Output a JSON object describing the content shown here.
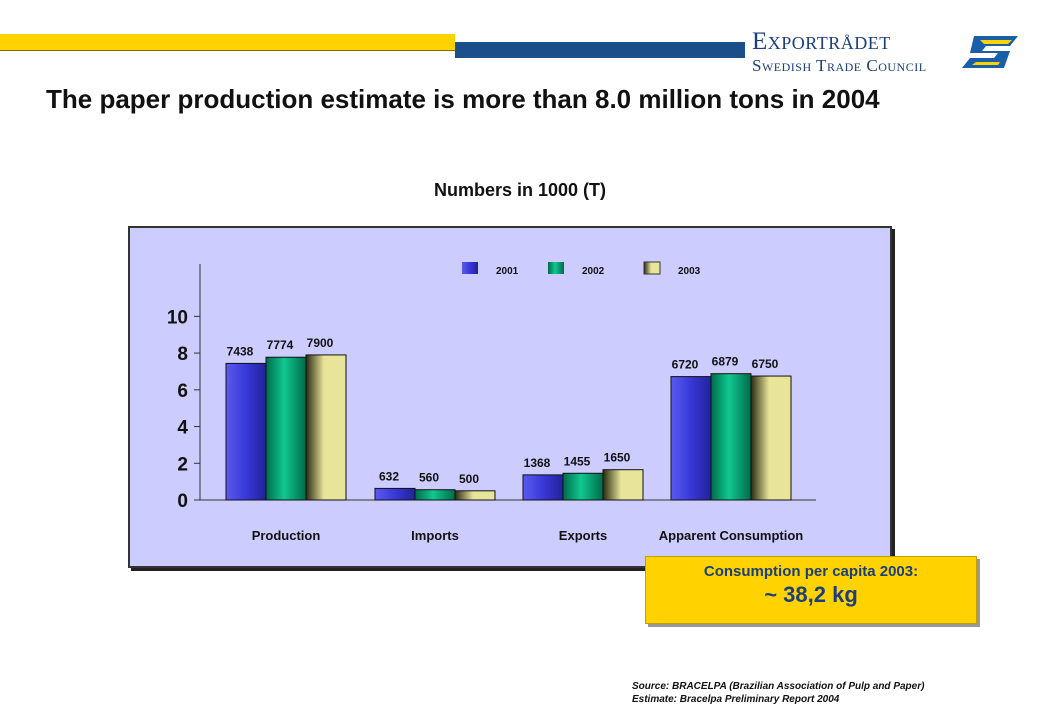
{
  "header": {
    "logo_line1": "Exportrådet",
    "logo_line2": "Swedish Trade Council",
    "logo_icon": "swedish-trade-council-logo-icon"
  },
  "title": "The paper production estimate  is more than 8.0 million tons in 2004",
  "subtitle": "Numbers in 1000 (T)",
  "chart_data": {
    "type": "bar",
    "categories": [
      "Production",
      "Imports",
      "Exports",
      "Apparent Consumption"
    ],
    "series": [
      {
        "name": "2001",
        "values": [
          7438,
          632,
          1368,
          6720
        ],
        "color": "#3d3ddb"
      },
      {
        "name": "2002",
        "values": [
          7774,
          560,
          1455,
          6879
        ],
        "color": "#00a878"
      },
      {
        "name": "2003",
        "values": [
          7900,
          500,
          1650,
          6750
        ],
        "color": "#d9d36a"
      }
    ],
    "yticks": [
      "0",
      "2",
      "4",
      "6",
      "8",
      "10"
    ],
    "ylim": [
      0,
      11000
    ],
    "legend_position": "top",
    "grid": false
  },
  "callout": {
    "line1": "Consumption per capita 2003",
    "line1_suffix": ":",
    "line2": "~ 38,2 kg"
  },
  "source": {
    "line1": "Source: BRACELPA (Brazilian Association of Pulp and Paper)",
    "line2": "Estimate: Bracelpa  Preliminary Report 2004"
  }
}
